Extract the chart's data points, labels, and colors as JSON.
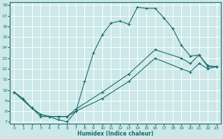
{
  "xlabel": "Humidex (Indice chaleur)",
  "xlim": [
    -0.5,
    23.5
  ],
  "ylim": [
    6.8,
    18.3
  ],
  "xticks": [
    0,
    1,
    2,
    3,
    4,
    5,
    6,
    7,
    8,
    9,
    10,
    11,
    12,
    13,
    14,
    15,
    16,
    17,
    18,
    19,
    20,
    21,
    22,
    23
  ],
  "yticks": [
    7,
    8,
    9,
    10,
    11,
    12,
    13,
    14,
    15,
    16,
    17,
    18
  ],
  "bg_color": "#cce8e8",
  "line_color": "#1a6b6b",
  "grid_color": "#ffffff",
  "line1_x": [
    0,
    1,
    2,
    3,
    4,
    5,
    6,
    7,
    8,
    9,
    10,
    11,
    12,
    13,
    14,
    15,
    16,
    17,
    18,
    19,
    20,
    21,
    22,
    23
  ],
  "line1_y": [
    9.8,
    9.2,
    8.3,
    7.5,
    7.5,
    7.2,
    7.0,
    8.0,
    10.8,
    13.5,
    15.2,
    16.3,
    16.5,
    16.2,
    17.8,
    17.7,
    17.7,
    16.8,
    15.8,
    14.2,
    13.2,
    13.3,
    12.3,
    12.2
  ],
  "line2_x": [
    0,
    2,
    3,
    4,
    5,
    6,
    7,
    10,
    13,
    16,
    19,
    20,
    21,
    22,
    23
  ],
  "line2_y": [
    9.8,
    8.3,
    7.7,
    7.5,
    7.5,
    7.5,
    8.2,
    9.8,
    11.5,
    13.8,
    13.0,
    12.5,
    13.3,
    12.2,
    12.2
  ],
  "line3_x": [
    0,
    2,
    3,
    4,
    5,
    6,
    7,
    10,
    13,
    16,
    19,
    20,
    21,
    22,
    23
  ],
  "line3_y": [
    9.8,
    8.3,
    7.7,
    7.5,
    7.5,
    7.5,
    8.0,
    9.2,
    10.8,
    13.0,
    12.0,
    11.7,
    12.5,
    12.0,
    12.2
  ]
}
